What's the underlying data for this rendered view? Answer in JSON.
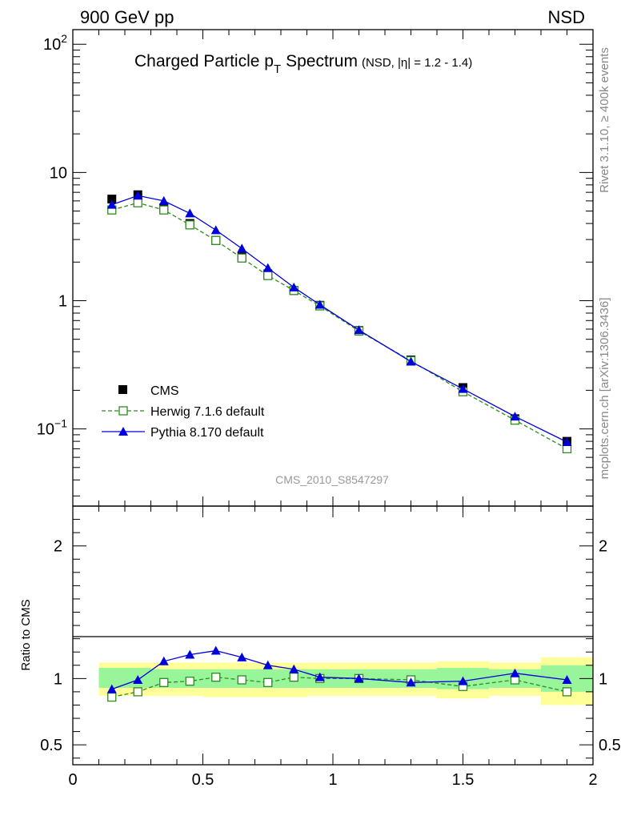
{
  "header": {
    "energy_label": "900 GeV pp",
    "process_label": "NSD",
    "analysis_id": "CMS_2010_S8547297",
    "side_label_top": "Rivet 3.1.10, ≥ 400k events",
    "side_label_bottom": "mcplots.cern.ch [arXiv:1306.3436]"
  },
  "colors": {
    "cms": "#000000",
    "herwig": "#2e8b1e",
    "pythia": "#0000dd",
    "band_inner": "#99f599",
    "band_outer": "#ffff99"
  },
  "chart_data": [
    {
      "type": "line",
      "title": "Charged Particle pT Spectrum",
      "title_parts": {
        "main": "Charged Particle p",
        "sub": "T",
        "rest": "Spectrum",
        "qualifier": "(NSD, |η| = 1.2 - 1.4)"
      },
      "yscale": "log",
      "xlim": [
        0,
        2
      ],
      "ylim": [
        0.025,
        130
      ],
      "ytick_labels": [
        {
          "value": 0.1,
          "base": "10",
          "exp": "−1"
        },
        {
          "value": 1,
          "base": "1",
          "exp": ""
        },
        {
          "value": 10,
          "base": "10",
          "exp": ""
        },
        {
          "value": 100,
          "base": "10",
          "exp": "2"
        }
      ],
      "legend": [
        {
          "key": "cms",
          "label": "CMS"
        },
        {
          "key": "herwig",
          "label": "Herwig 7.1.6 default"
        },
        {
          "key": "pythia",
          "label": "Pythia 8.170 default"
        }
      ],
      "legend_position": "bottom-left",
      "x": [
        0.15,
        0.25,
        0.35,
        0.45,
        0.55,
        0.65,
        0.75,
        0.85,
        0.95,
        1.1,
        1.3,
        1.5,
        1.7,
        1.9
      ],
      "series": [
        {
          "key": "cms",
          "name": "CMS",
          "values": [
            6.2,
            6.7,
            5.3,
            4.0,
            2.95,
            2.2,
            1.62,
            1.2,
            0.92,
            0.585,
            0.345,
            0.21,
            0.12,
            0.08
          ]
        },
        {
          "key": "herwig",
          "name": "Herwig 7.1.6 default",
          "values": [
            5.1,
            5.8,
            5.1,
            3.9,
            2.95,
            2.15,
            1.57,
            1.2,
            0.91,
            0.58,
            0.34,
            0.195,
            0.117,
            0.07
          ]
        },
        {
          "key": "pythia",
          "name": "Pythia 8.170 default",
          "values": [
            5.6,
            6.6,
            6.0,
            4.8,
            3.55,
            2.55,
            1.8,
            1.27,
            0.93,
            0.59,
            0.335,
            0.205,
            0.125,
            0.079
          ]
        }
      ]
    },
    {
      "type": "line",
      "ylabel": "Ratio to CMS",
      "xlim": [
        0,
        2
      ],
      "ylim": [
        0.35,
        2.3
      ],
      "xtick_labels": [
        {
          "value": 0,
          "label": "0"
        },
        {
          "value": 0.5,
          "label": "0.5"
        },
        {
          "value": 1,
          "label": "1"
        },
        {
          "value": 1.5,
          "label": "1.5"
        },
        {
          "value": 2,
          "label": "2"
        }
      ],
      "ytick_labels": [
        {
          "value": 0.5,
          "label": "0.5"
        },
        {
          "value": 1,
          "label": "1"
        },
        {
          "value": 2,
          "label": "2"
        }
      ],
      "x": [
        0.15,
        0.25,
        0.35,
        0.45,
        0.55,
        0.65,
        0.75,
        0.85,
        0.95,
        1.1,
        1.3,
        1.5,
        1.7,
        1.9
      ],
      "band": [
        {
          "x0": 0.1,
          "x1": 0.2,
          "inner": [
            0.93,
            1.08
          ],
          "outer": [
            0.87,
            1.12
          ]
        },
        {
          "x0": 0.2,
          "x1": 0.3,
          "inner": [
            0.93,
            1.08
          ],
          "outer": [
            0.87,
            1.12
          ]
        },
        {
          "x0": 0.3,
          "x1": 0.4,
          "inner": [
            0.93,
            1.07
          ],
          "outer": [
            0.87,
            1.12
          ]
        },
        {
          "x0": 0.4,
          "x1": 0.5,
          "inner": [
            0.93,
            1.07
          ],
          "outer": [
            0.87,
            1.12
          ]
        },
        {
          "x0": 0.5,
          "x1": 0.6,
          "inner": [
            0.93,
            1.07
          ],
          "outer": [
            0.86,
            1.12
          ]
        },
        {
          "x0": 0.6,
          "x1": 0.7,
          "inner": [
            0.93,
            1.07
          ],
          "outer": [
            0.86,
            1.12
          ]
        },
        {
          "x0": 0.7,
          "x1": 0.8,
          "inner": [
            0.93,
            1.07
          ],
          "outer": [
            0.86,
            1.12
          ]
        },
        {
          "x0": 0.8,
          "x1": 0.9,
          "inner": [
            0.93,
            1.07
          ],
          "outer": [
            0.86,
            1.12
          ]
        },
        {
          "x0": 0.9,
          "x1": 1.0,
          "inner": [
            0.93,
            1.07
          ],
          "outer": [
            0.87,
            1.12
          ]
        },
        {
          "x0": 1.0,
          "x1": 1.2,
          "inner": [
            0.93,
            1.07
          ],
          "outer": [
            0.87,
            1.12
          ]
        },
        {
          "x0": 1.2,
          "x1": 1.4,
          "inner": [
            0.93,
            1.07
          ],
          "outer": [
            0.87,
            1.12
          ]
        },
        {
          "x0": 1.4,
          "x1": 1.6,
          "inner": [
            0.92,
            1.08
          ],
          "outer": [
            0.85,
            1.13
          ]
        },
        {
          "x0": 1.6,
          "x1": 1.8,
          "inner": [
            0.93,
            1.07
          ],
          "outer": [
            0.87,
            1.12
          ]
        },
        {
          "x0": 1.8,
          "x1": 2.0,
          "inner": [
            0.9,
            1.1
          ],
          "outer": [
            0.8,
            1.16
          ]
        }
      ],
      "series": [
        {
          "key": "herwig",
          "name": "Herwig 7.1.6 default",
          "values": [
            0.86,
            0.9,
            0.97,
            0.98,
            1.01,
            0.99,
            0.97,
            1.01,
            1.0,
            1.0,
            0.99,
            0.94,
            0.99,
            0.9
          ]
        },
        {
          "key": "pythia",
          "name": "Pythia 8.170 default",
          "values": [
            0.92,
            0.99,
            1.13,
            1.18,
            1.21,
            1.16,
            1.1,
            1.07,
            1.01,
            1.0,
            0.97,
            0.98,
            1.04,
            0.99
          ]
        }
      ]
    }
  ]
}
